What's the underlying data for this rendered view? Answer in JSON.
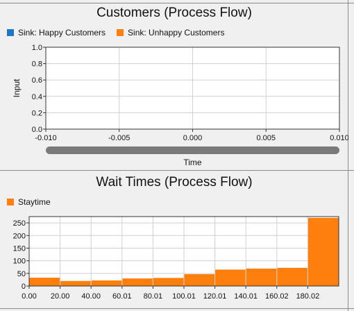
{
  "colors": {
    "happy": "#1f77c8",
    "unhappy": "#ff7f0e",
    "staytime": "#ff7f0e",
    "grid": "#d0d0d0",
    "plot_bg": "#ffffff"
  },
  "chart_data": [
    {
      "type": "line",
      "title": "Customers (Process Flow)",
      "xlabel": "Time",
      "ylabel": "Input",
      "xlim": [
        -0.01,
        0.01
      ],
      "ylim": [
        0,
        1.0
      ],
      "xticks": [
        "-0.010",
        "-0.005",
        "0.000",
        "0.005",
        "0.010"
      ],
      "yticks": [
        "0.0",
        "0.2",
        "0.4",
        "0.6",
        "0.8",
        "1.0"
      ],
      "grid": true,
      "legend_position": "top-left",
      "series": [
        {
          "name": "Sink: Happy Customers",
          "x": [],
          "y": []
        },
        {
          "name": "Sink: Unhappy Customers",
          "x": [],
          "y": []
        }
      ]
    },
    {
      "type": "bar",
      "title": "Wait Times (Process Flow)",
      "xlabel": "",
      "ylabel": "",
      "ylim": [
        0,
        275
      ],
      "yticks": [
        "0",
        "50",
        "100",
        "150",
        "200",
        "250"
      ],
      "xticks": [
        "0.00",
        "20.00",
        "40.00",
        "60.01",
        "80.01",
        "100.01",
        "120.01",
        "140.01",
        "160.02",
        "180.02"
      ],
      "grid": true,
      "legend_position": "top-left",
      "series": [
        {
          "name": "Staytime",
          "values": [
            33,
            20,
            22,
            30,
            32,
            47,
            65,
            69,
            72,
            270
          ]
        }
      ]
    }
  ]
}
